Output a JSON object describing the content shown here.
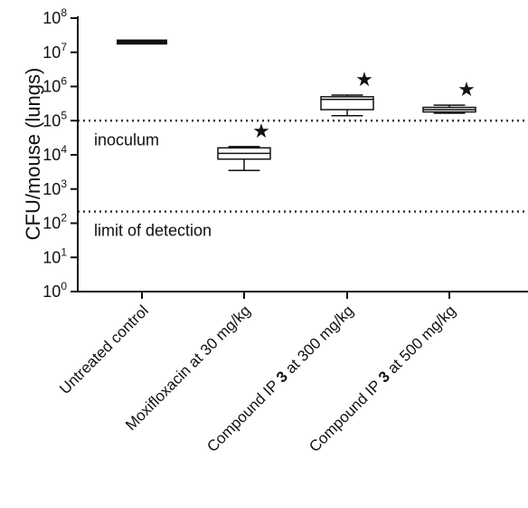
{
  "chart_data": {
    "type": "box",
    "ylabel": "CFU/mouse (lungs)",
    "yscale": "log10",
    "ylim_log10": [
      0,
      8
    ],
    "yticks": [
      {
        "exp": 0,
        "base": "10",
        "sup": "0"
      },
      {
        "exp": 1,
        "base": "10",
        "sup": "1"
      },
      {
        "exp": 2,
        "base": "10",
        "sup": "2"
      },
      {
        "exp": 3,
        "base": "10",
        "sup": "3"
      },
      {
        "exp": 4,
        "base": "10",
        "sup": "4"
      },
      {
        "exp": 5,
        "base": "10",
        "sup": "5"
      },
      {
        "exp": 6,
        "base": "10",
        "sup": "6"
      },
      {
        "exp": 7,
        "base": "10",
        "sup": "7"
      },
      {
        "exp": 8,
        "base": "10",
        "sup": "8"
      }
    ],
    "categories": [
      {
        "pre": "Untreated control",
        "bold": "",
        "post": ""
      },
      {
        "pre": "Moxifloxacin at 30 mg/kg",
        "bold": "",
        "post": ""
      },
      {
        "pre": "Compound IP ",
        "bold": "3",
        "post": " at 300 mg/kg"
      },
      {
        "pre": "Compound IP ",
        "bold": "3",
        "post": " at 500 mg/kg"
      }
    ],
    "boxes": [
      {
        "min": 18000000,
        "q1": 19000000,
        "median": 20000000,
        "q3": 21000000,
        "max": 22000000,
        "significant": false
      },
      {
        "min": 3500.0,
        "q1": 7500,
        "median": 11000,
        "q3": 16000,
        "max": 17500,
        "significant": true
      },
      {
        "min": 140000,
        "q1": 210000,
        "median": 420000,
        "q3": 500000,
        "max": 560000,
        "significant": true
      },
      {
        "min": 165000,
        "q1": 180000,
        "median": 210000,
        "q3": 245000,
        "max": 285000,
        "significant": true
      }
    ],
    "reference_lines": [
      {
        "label": "inoculum",
        "value": 100000,
        "style": "dotted"
      },
      {
        "label": "limit of detection",
        "value": 220,
        "style": "dotted"
      }
    ],
    "marker_symbol": "★"
  }
}
